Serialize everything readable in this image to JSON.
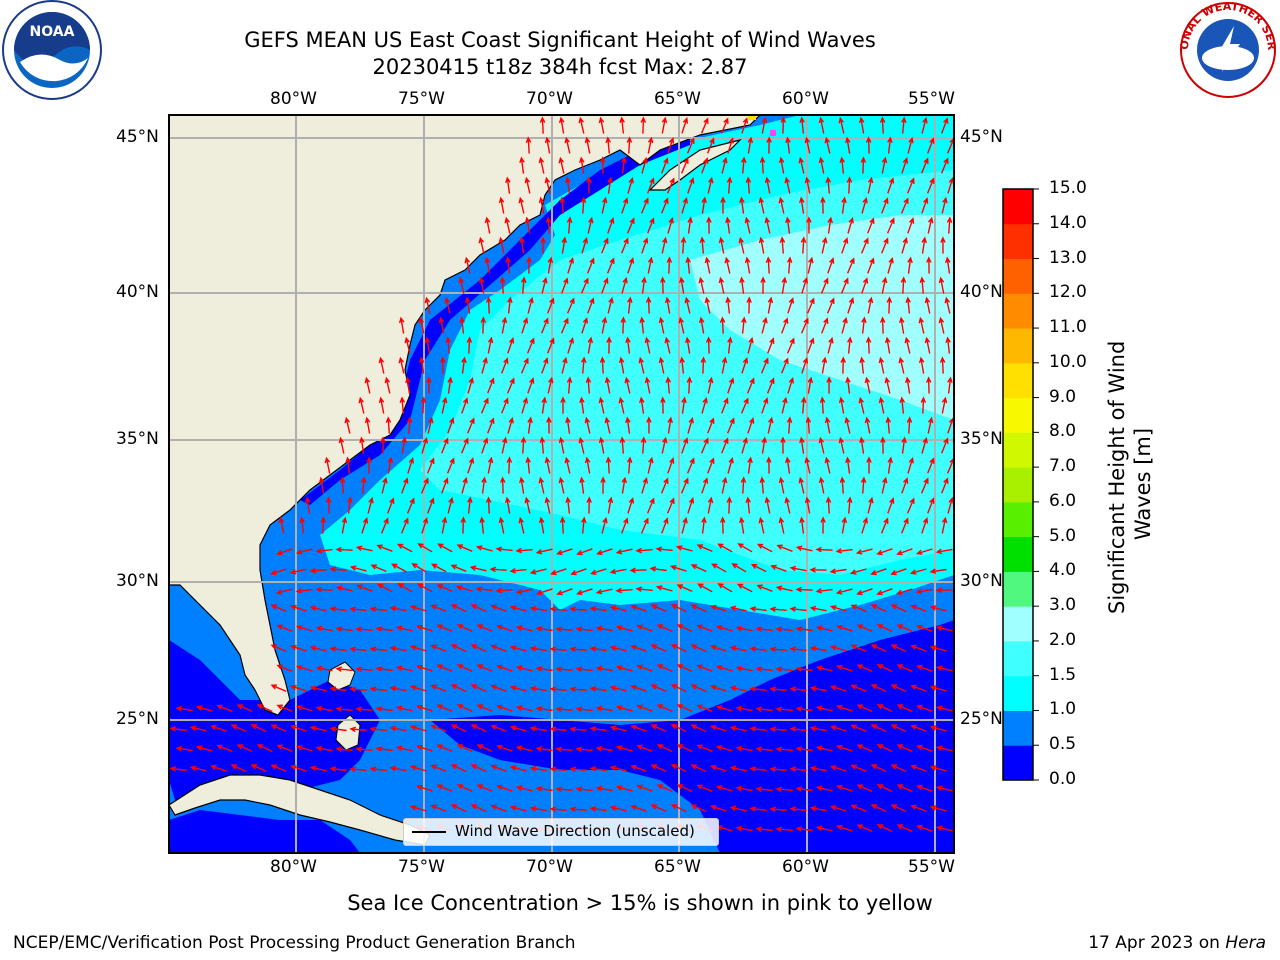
{
  "header": {
    "title_line1": "GEFS MEAN US East Coast Significant Height of Wind Waves",
    "title_line2": "20230415 t18z 384h fcst   Max: 2.87"
  },
  "logos": {
    "left": "NOAA",
    "right": "NATIONAL WEATHER SERVICE"
  },
  "map": {
    "lon_labels": [
      "80°W",
      "75°W",
      "70°W",
      "65°W",
      "60°W",
      "55°W"
    ],
    "lat_labels": [
      "45°N",
      "40°N",
      "35°N",
      "30°N",
      "25°N"
    ],
    "legend_label": "Wind Wave Direction (unscaled)",
    "arrow_color": "#ff0000",
    "land_color": "#efeedc"
  },
  "colorbar": {
    "title_line1": "Significant Height of Wind",
    "title_line2": "Waves [m]",
    "ticks": [
      "0.0",
      "0.5",
      "1.0",
      "1.5",
      "2.0",
      "3.0",
      "4.0",
      "5.0",
      "6.0",
      "7.0",
      "8.0",
      "9.0",
      "10.0",
      "11.0",
      "12.0",
      "13.0",
      "14.0",
      "15.0"
    ],
    "colors": [
      "#0000ff",
      "#0080ff",
      "#00ffff",
      "#40ffff",
      "#a0ffff",
      "#50f880",
      "#00e000",
      "#58f000",
      "#a8f000",
      "#d0f800",
      "#f8f800",
      "#ffe000",
      "#ffb800",
      "#ff8c00",
      "#ff6000",
      "#ff3000",
      "#ff0000"
    ]
  },
  "caption": "Sea Ice Concentration > 15% is shown in pink to yellow",
  "footer": {
    "left": "NCEP/EMC/Verification Post Processing Product Generation Branch",
    "right_date": "17 Apr 2023 on ",
    "right_host": "Hera"
  }
}
